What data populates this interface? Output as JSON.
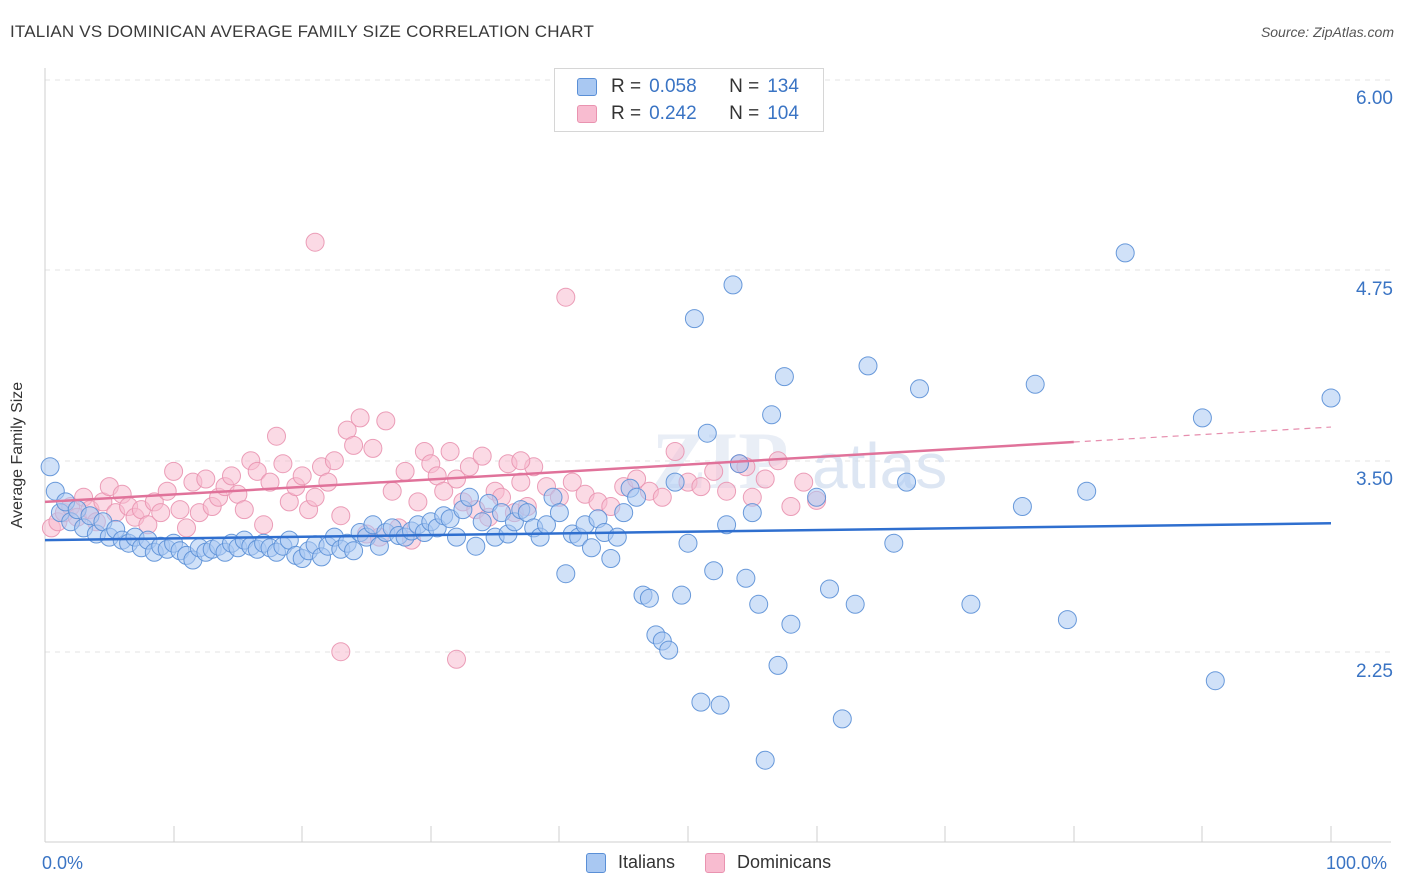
{
  "title": "ITALIAN VS DOMINICAN AVERAGE FAMILY SIZE CORRELATION CHART",
  "source": "Source: ZipAtlas.com",
  "legend": {
    "rows": [
      {
        "r_label": "R = ",
        "r_value": "0.058",
        "n_label": "N = ",
        "n_value": "134"
      },
      {
        "r_label": "R = ",
        "r_value": "0.242",
        "n_label": "N = ",
        "n_value": "104"
      }
    ]
  },
  "bottom_legend": [
    "Italians",
    "Dominicans"
  ],
  "x_axis_labels": {
    "left": "0.0%",
    "right": "100.0%"
  },
  "colors": {
    "italians_fill": "#a9c8f2",
    "italians_stroke": "#5a8fd6",
    "italians_line": "#2f6fcf",
    "dominicans_fill": "#f8bcd0",
    "dominicans_stroke": "#e993b0",
    "dominicans_line": "#e0729a",
    "tick_label": "#3a74c4",
    "grid": "#e3e3e3"
  },
  "chart_data": {
    "type": "scatter",
    "title": "ITALIAN VS DOMINICAN AVERAGE FAMILY SIZE CORRELATION CHART",
    "xlabel": "",
    "ylabel": "Average Family Size",
    "xlim": [
      0,
      100
    ],
    "ylim": [
      1.25,
      6.3
    ],
    "y_ticks": [
      {
        "value": 2.25,
        "label": "2.25"
      },
      {
        "value": 3.5,
        "label": "3.50"
      },
      {
        "value": 4.75,
        "label": "4.75"
      },
      {
        "value": 6.0,
        "label": "6.00"
      }
    ],
    "x_tick_positions": [
      0,
      10,
      20,
      30,
      40,
      50,
      60,
      70,
      80,
      90,
      100
    ],
    "grid": true,
    "legend_position": "top-center",
    "series": [
      {
        "name": "Italians",
        "r": 0.058,
        "n": 134,
        "trend": {
          "x": [
            0,
            100
          ],
          "y": [
            3.1,
            3.21
          ],
          "dashed_from": null
        },
        "points": [
          [
            0.4,
            3.58
          ],
          [
            0.8,
            3.42
          ],
          [
            1.2,
            3.28
          ],
          [
            1.6,
            3.35
          ],
          [
            2,
            3.22
          ],
          [
            2.5,
            3.3
          ],
          [
            3,
            3.18
          ],
          [
            3.5,
            3.26
          ],
          [
            4,
            3.14
          ],
          [
            4.5,
            3.22
          ],
          [
            5,
            3.12
          ],
          [
            5.5,
            3.17
          ],
          [
            6,
            3.1
          ],
          [
            6.5,
            3.08
          ],
          [
            7,
            3.12
          ],
          [
            7.5,
            3.05
          ],
          [
            8,
            3.1
          ],
          [
            8.5,
            3.02
          ],
          [
            9,
            3.06
          ],
          [
            9.5,
            3.04
          ],
          [
            10,
            3.08
          ],
          [
            10.5,
            3.03
          ],
          [
            11,
            3.0
          ],
          [
            11.5,
            2.97
          ],
          [
            12,
            3.05
          ],
          [
            12.5,
            3.02
          ],
          [
            13,
            3.04
          ],
          [
            13.5,
            3.06
          ],
          [
            14,
            3.02
          ],
          [
            14.5,
            3.08
          ],
          [
            15,
            3.05
          ],
          [
            15.5,
            3.1
          ],
          [
            16,
            3.06
          ],
          [
            16.5,
            3.04
          ],
          [
            17,
            3.08
          ],
          [
            17.5,
            3.05
          ],
          [
            18,
            3.02
          ],
          [
            18.5,
            3.06
          ],
          [
            19,
            3.1
          ],
          [
            19.5,
            3.0
          ],
          [
            20,
            2.98
          ],
          [
            20.5,
            3.03
          ],
          [
            21,
            3.07
          ],
          [
            21.5,
            2.99
          ],
          [
            22,
            3.06
          ],
          [
            22.5,
            3.12
          ],
          [
            23,
            3.04
          ],
          [
            23.5,
            3.08
          ],
          [
            24,
            3.03
          ],
          [
            24.5,
            3.15
          ],
          [
            25,
            3.12
          ],
          [
            25.5,
            3.2
          ],
          [
            26,
            3.06
          ],
          [
            26.5,
            3.15
          ],
          [
            27,
            3.18
          ],
          [
            27.5,
            3.13
          ],
          [
            28,
            3.12
          ],
          [
            28.5,
            3.16
          ],
          [
            29,
            3.2
          ],
          [
            29.5,
            3.15
          ],
          [
            30,
            3.22
          ],
          [
            30.5,
            3.18
          ],
          [
            31,
            3.26
          ],
          [
            31.5,
            3.24
          ],
          [
            32,
            3.12
          ],
          [
            32.5,
            3.3
          ],
          [
            33,
            3.38
          ],
          [
            33.5,
            3.06
          ],
          [
            34,
            3.22
          ],
          [
            34.5,
            3.34
          ],
          [
            35,
            3.12
          ],
          [
            35.5,
            3.28
          ],
          [
            36,
            3.14
          ],
          [
            36.5,
            3.22
          ],
          [
            37,
            3.3
          ],
          [
            37.5,
            3.28
          ],
          [
            38,
            3.18
          ],
          [
            38.5,
            3.12
          ],
          [
            39,
            3.2
          ],
          [
            39.5,
            3.38
          ],
          [
            40,
            3.28
          ],
          [
            40.5,
            2.88
          ],
          [
            41,
            3.14
          ],
          [
            41.5,
            3.12
          ],
          [
            42,
            3.2
          ],
          [
            42.5,
            3.05
          ],
          [
            43,
            3.24
          ],
          [
            43.5,
            3.15
          ],
          [
            44,
            2.98
          ],
          [
            44.5,
            3.12
          ],
          [
            45,
            3.28
          ],
          [
            45.5,
            3.44
          ],
          [
            46,
            3.38
          ],
          [
            46.5,
            2.74
          ],
          [
            47,
            2.72
          ],
          [
            47.5,
            2.48
          ],
          [
            48,
            2.44
          ],
          [
            48.5,
            2.38
          ],
          [
            49,
            3.48
          ],
          [
            49.5,
            2.74
          ],
          [
            50,
            3.08
          ],
          [
            50.5,
            4.55
          ],
          [
            51,
            2.04
          ],
          [
            51.5,
            3.8
          ],
          [
            52,
            2.9
          ],
          [
            52.5,
            2.02
          ],
          [
            53,
            3.2
          ],
          [
            53.5,
            4.77
          ],
          [
            54,
            3.6
          ],
          [
            54.5,
            2.85
          ],
          [
            55,
            3.28
          ],
          [
            55.5,
            2.68
          ],
          [
            56,
            1.66
          ],
          [
            56.5,
            3.92
          ],
          [
            57,
            2.28
          ],
          [
            57.5,
            4.17
          ],
          [
            58,
            2.55
          ],
          [
            60,
            3.38
          ],
          [
            61,
            2.78
          ],
          [
            62,
            1.93
          ],
          [
            63,
            2.68
          ],
          [
            64,
            4.24
          ],
          [
            66,
            3.08
          ],
          [
            67,
            3.48
          ],
          [
            68,
            4.09
          ],
          [
            72,
            2.68
          ],
          [
            76,
            3.32
          ],
          [
            77,
            4.12
          ],
          [
            79.5,
            2.58
          ],
          [
            81,
            3.42
          ],
          [
            84,
            4.98
          ],
          [
            90,
            3.9
          ],
          [
            91,
            2.18
          ],
          [
            100,
            4.03
          ]
        ]
      },
      {
        "name": "Dominicans",
        "r": 0.242,
        "n": 104,
        "trend": {
          "x": [
            0,
            100
          ],
          "y": [
            3.35,
            3.84
          ],
          "dashed_from": 80
        },
        "points": [
          [
            0.5,
            3.18
          ],
          [
            1,
            3.22
          ],
          [
            1.5,
            3.28
          ],
          [
            2,
            3.32
          ],
          [
            2.5,
            3.25
          ],
          [
            3,
            3.38
          ],
          [
            3.5,
            3.3
          ],
          [
            4,
            3.22
          ],
          [
            4.5,
            3.35
          ],
          [
            5,
            3.45
          ],
          [
            5.5,
            3.28
          ],
          [
            6,
            3.4
          ],
          [
            6.5,
            3.32
          ],
          [
            7,
            3.25
          ],
          [
            7.5,
            3.3
          ],
          [
            8,
            3.2
          ],
          [
            8.5,
            3.35
          ],
          [
            9,
            3.28
          ],
          [
            9.5,
            3.42
          ],
          [
            10,
            3.55
          ],
          [
            10.5,
            3.3
          ],
          [
            11,
            3.18
          ],
          [
            11.5,
            3.48
          ],
          [
            12,
            3.28
          ],
          [
            12.5,
            3.5
          ],
          [
            13,
            3.32
          ],
          [
            13.5,
            3.38
          ],
          [
            14,
            3.45
          ],
          [
            14.5,
            3.52
          ],
          [
            15,
            3.4
          ],
          [
            15.5,
            3.3
          ],
          [
            16,
            3.62
          ],
          [
            16.5,
            3.55
          ],
          [
            17,
            3.2
          ],
          [
            17.5,
            3.48
          ],
          [
            18,
            3.78
          ],
          [
            18.5,
            3.6
          ],
          [
            19,
            3.35
          ],
          [
            19.5,
            3.45
          ],
          [
            20,
            3.52
          ],
          [
            20.5,
            3.3
          ],
          [
            21,
            3.38
          ],
          [
            21.5,
            3.58
          ],
          [
            22,
            3.48
          ],
          [
            22.5,
            3.62
          ],
          [
            23,
            3.26
          ],
          [
            23.5,
            3.82
          ],
          [
            24,
            3.72
          ],
          [
            24.5,
            3.9
          ],
          [
            25,
            3.14
          ],
          [
            25.5,
            3.7
          ],
          [
            26,
            3.12
          ],
          [
            26.5,
            3.88
          ],
          [
            27,
            3.42
          ],
          [
            27.5,
            3.18
          ],
          [
            28,
            3.55
          ],
          [
            28.5,
            3.1
          ],
          [
            29,
            3.35
          ],
          [
            29.5,
            3.68
          ],
          [
            30,
            3.6
          ],
          [
            30.5,
            3.52
          ],
          [
            31,
            3.42
          ],
          [
            31.5,
            3.68
          ],
          [
            32,
            3.5
          ],
          [
            32.5,
            3.35
          ],
          [
            33,
            3.58
          ],
          [
            33.5,
            3.3
          ],
          [
            34,
            3.65
          ],
          [
            34.5,
            3.25
          ],
          [
            35,
            3.42
          ],
          [
            35.5,
            3.38
          ],
          [
            36,
            3.6
          ],
          [
            36.5,
            3.28
          ],
          [
            37,
            3.48
          ],
          [
            37.5,
            3.32
          ],
          [
            38,
            3.58
          ],
          [
            39,
            3.45
          ],
          [
            40,
            3.38
          ],
          [
            41,
            3.48
          ],
          [
            42,
            3.4
          ],
          [
            43,
            3.35
          ],
          [
            44,
            3.32
          ],
          [
            45,
            3.45
          ],
          [
            46,
            3.5
          ],
          [
            47,
            3.42
          ],
          [
            48,
            3.38
          ],
          [
            49,
            3.68
          ],
          [
            50,
            3.48
          ],
          [
            51,
            3.45
          ],
          [
            52,
            3.55
          ],
          [
            53,
            3.42
          ],
          [
            54,
            3.6
          ],
          [
            55,
            3.38
          ],
          [
            56,
            3.5
          ],
          [
            57,
            3.62
          ],
          [
            58,
            3.32
          ],
          [
            59,
            3.48
          ],
          [
            60,
            3.36
          ],
          [
            21,
            5.05
          ],
          [
            40.5,
            4.69
          ],
          [
            23,
            2.37
          ],
          [
            32,
            2.32
          ],
          [
            37,
            3.62
          ],
          [
            54.5,
            3.58
          ]
        ]
      }
    ]
  }
}
